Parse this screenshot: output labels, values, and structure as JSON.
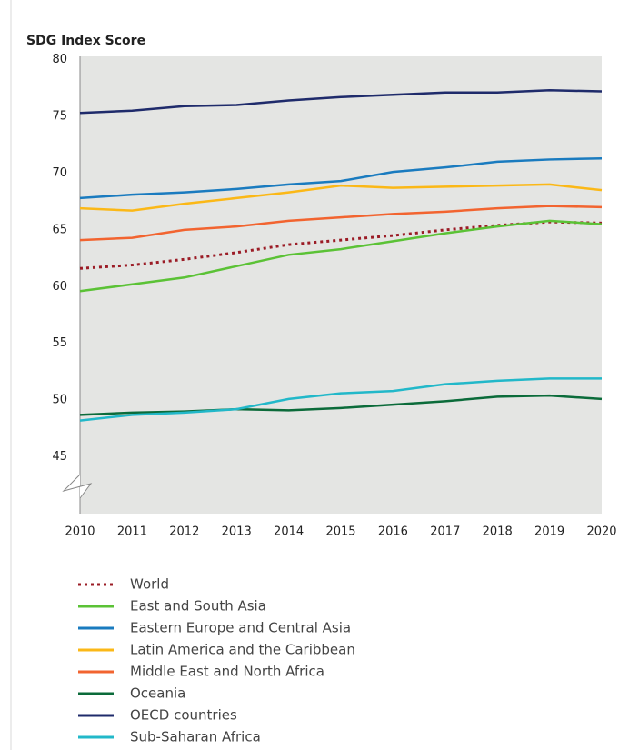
{
  "chart_data": {
    "type": "line",
    "title": "SDG Index Score",
    "x": [
      2010,
      2011,
      2012,
      2013,
      2014,
      2015,
      2016,
      2017,
      2018,
      2019,
      2020
    ],
    "xlim": [
      2010,
      2020
    ],
    "xticks": [
      2010,
      2011,
      2012,
      2013,
      2014,
      2015,
      2016,
      2017,
      2018,
      2019,
      2020
    ],
    "ylim": [
      40,
      80
    ],
    "yticks": [
      45,
      50,
      55,
      60,
      65,
      70,
      75,
      80
    ],
    "grid": false,
    "series": [
      {
        "name": "World",
        "color": "#9b1c26",
        "dash": "dotted",
        "values": [
          61.6,
          61.9,
          62.4,
          63.0,
          63.7,
          64.1,
          64.5,
          65.0,
          65.4,
          65.7,
          65.6
        ]
      },
      {
        "name": "East and South Asia",
        "color": "#5bc236",
        "values": [
          59.6,
          60.2,
          60.8,
          61.8,
          62.8,
          63.3,
          64.0,
          64.7,
          65.3,
          65.8,
          65.5
        ]
      },
      {
        "name": "Eastern Europe and Central Asia",
        "color": "#1a7bbf",
        "values": [
          67.8,
          68.1,
          68.3,
          68.6,
          69.0,
          69.3,
          70.1,
          70.5,
          71.0,
          71.2,
          71.3
        ]
      },
      {
        "name": "Latin America and the Caribbean",
        "color": "#fbb817",
        "values": [
          66.9,
          66.7,
          67.3,
          67.8,
          68.3,
          68.9,
          68.7,
          68.8,
          68.9,
          69.0,
          68.5
        ]
      },
      {
        "name": "Middle East and North Africa",
        "color": "#f26430",
        "values": [
          64.1,
          64.3,
          65.0,
          65.3,
          65.8,
          66.1,
          66.4,
          66.6,
          66.9,
          67.1,
          67.0
        ]
      },
      {
        "name": "Oceania",
        "color": "#0b6b3a",
        "values": [
          48.7,
          48.9,
          49.0,
          49.2,
          49.1,
          49.3,
          49.6,
          49.9,
          50.3,
          50.4,
          50.1
        ]
      },
      {
        "name": "OECD countries",
        "color": "#1f2b6b",
        "values": [
          75.3,
          75.5,
          75.9,
          76.0,
          76.4,
          76.7,
          76.9,
          77.1,
          77.1,
          77.3,
          77.2
        ]
      },
      {
        "name": "Sub-Saharan Africa",
        "color": "#22b8c9",
        "values": [
          48.2,
          48.7,
          48.9,
          49.2,
          50.1,
          50.6,
          50.8,
          51.4,
          51.7,
          51.9,
          51.9
        ]
      }
    ]
  }
}
